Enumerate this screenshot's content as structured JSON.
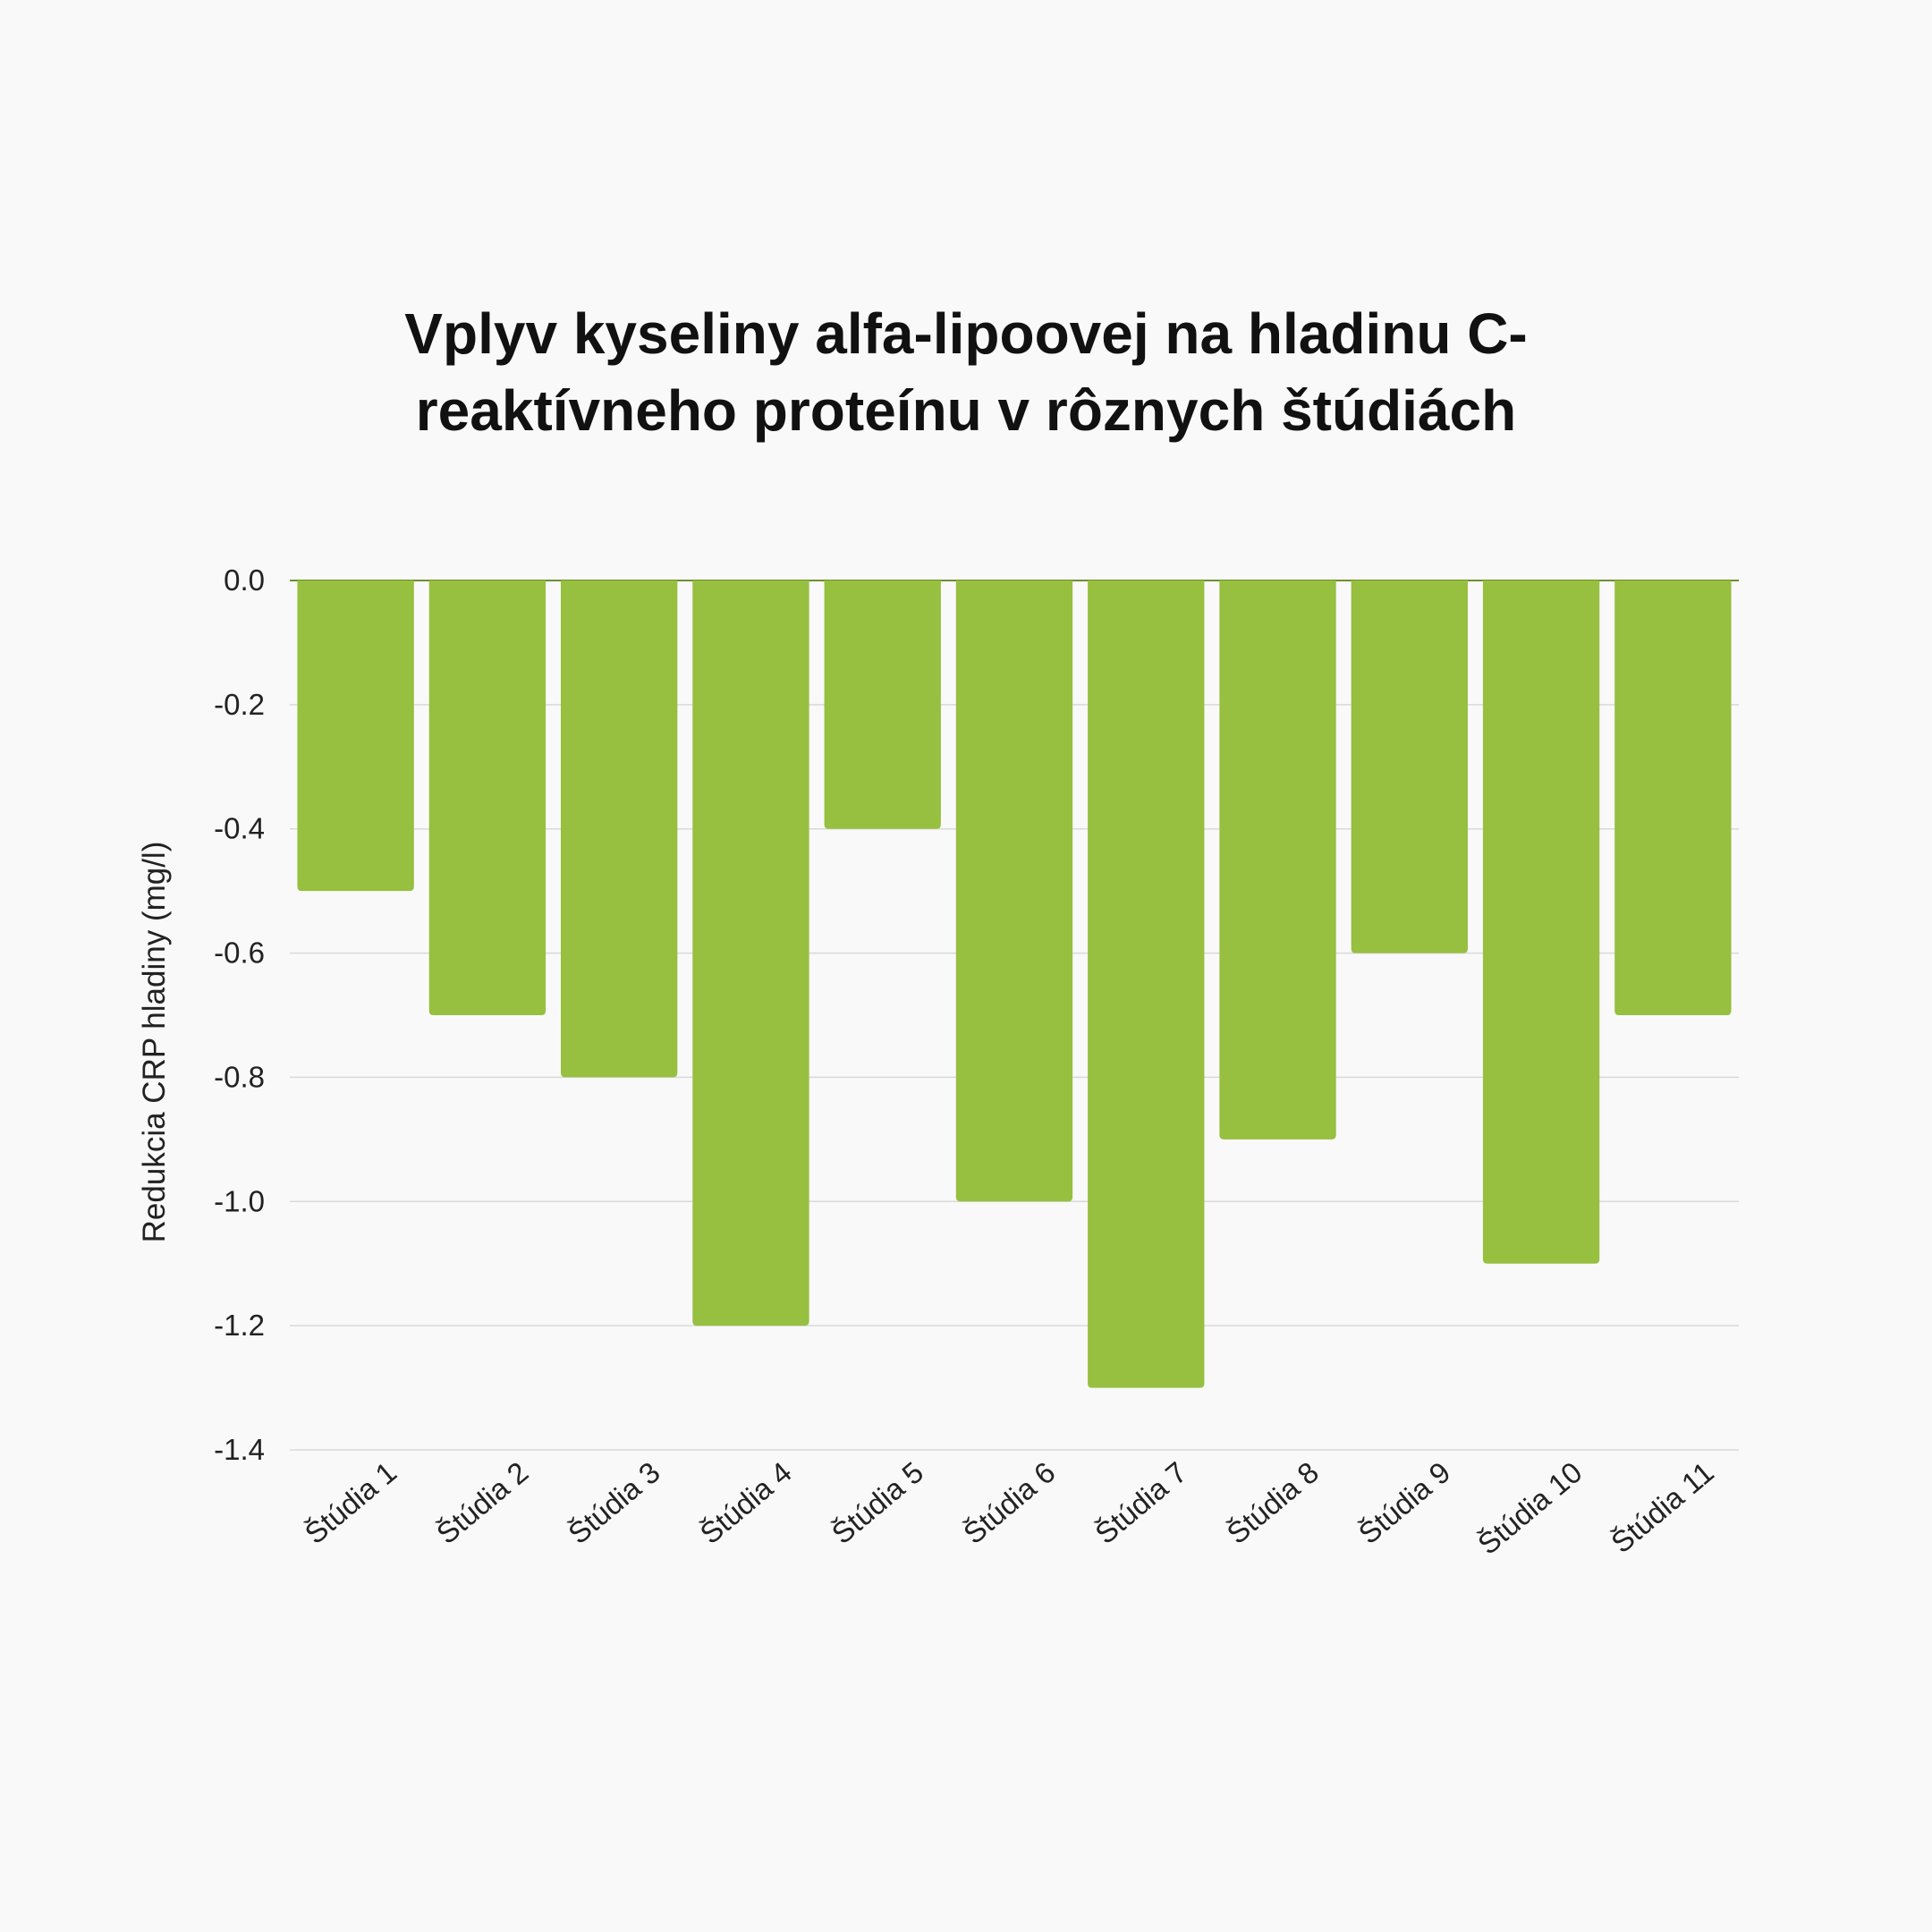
{
  "chart_data": {
    "type": "bar",
    "title": "Vplyv kyseliny alfa-lipoovej na hladinu C-reaktívneho proteínu v rôznych štúdiách",
    "xlabel": "",
    "ylabel": "Redukcia CRP hladiny (mg/l)",
    "categories": [
      "Štúdia 1",
      "Štúdia 2",
      "Štúdia 3",
      "Štúdia 4",
      "Štúdia 5",
      "Štúdia 6",
      "Štúdia 7",
      "Štúdia 8",
      "Štúdia 9",
      "Štúdia 10",
      "Štúdia 11"
    ],
    "values": [
      -0.5,
      -0.7,
      -0.8,
      -1.2,
      -0.4,
      -1.0,
      -1.3,
      -0.9,
      -0.6,
      -1.1,
      -0.7
    ],
    "ylim": [
      -1.4,
      0.0
    ],
    "yticks": [
      "0.0",
      "-0.2",
      "-0.4",
      "-0.6",
      "-0.8",
      "-1.0",
      "-1.2",
      "-1.4"
    ],
    "grid": true,
    "legend": "none",
    "bar_color": "#97bf40"
  }
}
